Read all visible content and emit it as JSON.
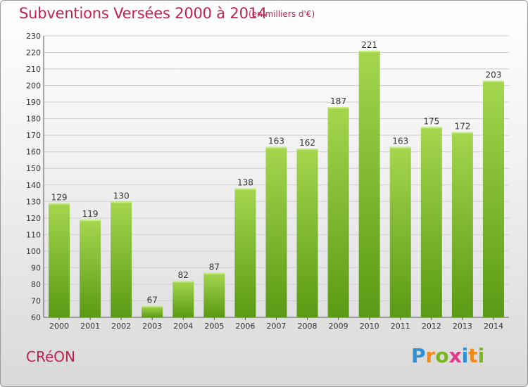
{
  "title": "Subventions Versées 2000 à 2014",
  "subtitle": "(en milliers d'€)",
  "commune": "CRéON",
  "logo": {
    "text": "Proxiti",
    "letters": [
      {
        "ch": "P",
        "color": "#2f8fd6"
      },
      {
        "ch": "r",
        "color": "#f08a1c"
      },
      {
        "ch": "o",
        "color": "#7ab51d"
      },
      {
        "ch": "x",
        "color": "#e03a8a"
      },
      {
        "ch": "i",
        "color": "#2f8fd6"
      },
      {
        "ch": "t",
        "color": "#f08a1c"
      },
      {
        "ch": "i",
        "color": "#7ab51d"
      }
    ]
  },
  "colors": {
    "bar_light": "#a5d64e",
    "bar_dark": "#5a9a14",
    "accent": "#c4204d",
    "grid": "#d0d0d0"
  },
  "chart_data": {
    "type": "bar",
    "categories": [
      "2000",
      "2001",
      "2002",
      "2003",
      "2004",
      "2005",
      "2006",
      "2007",
      "2008",
      "2009",
      "2010",
      "2011",
      "2012",
      "2013",
      "2014"
    ],
    "values": [
      129,
      119,
      130,
      67,
      82,
      87,
      138,
      163,
      162,
      187,
      221,
      163,
      175,
      172,
      203
    ],
    "ylim": [
      60,
      230
    ],
    "ytick_step": 10,
    "grid": true,
    "xlabel": "",
    "ylabel": ""
  }
}
